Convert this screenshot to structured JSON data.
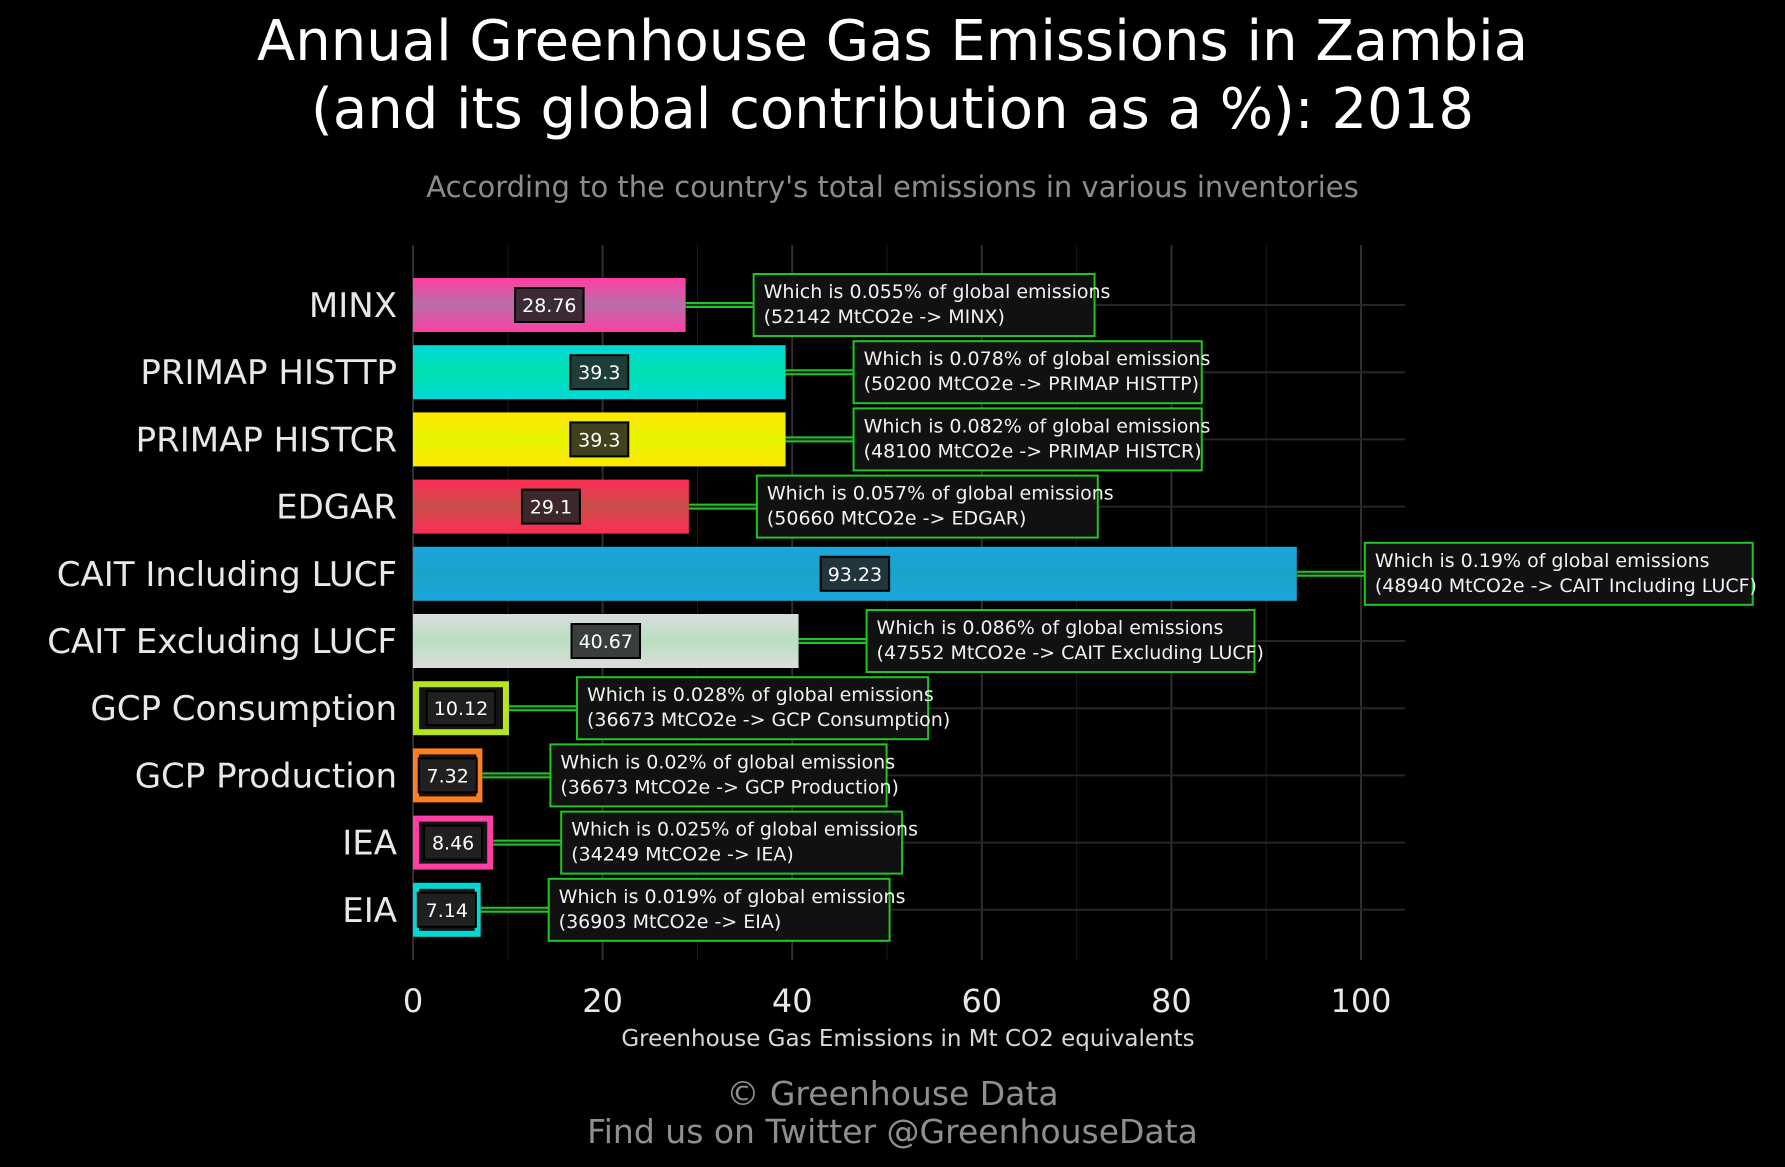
{
  "header": {
    "title_line1": "Annual Greenhouse Gas Emissions in Zambia",
    "title_line2": "(and its global contribution as a %): 2018",
    "subtitle": "According to the country's total emissions in various inventories"
  },
  "footer": {
    "credit": "© Greenhouse Data",
    "twitter": "Find us on Twitter @GreenhouseData"
  },
  "chart_data": {
    "type": "bar",
    "orientation": "horizontal",
    "xlabel": "Greenhouse Gas Emissions in Mt CO2 equivalents",
    "xlim": [
      0,
      105
    ],
    "xticks": [
      0,
      20,
      40,
      60,
      80,
      100
    ],
    "grid": true,
    "categories": [
      "MINX",
      "PRIMAP HISTTP",
      "PRIMAP HISTCR",
      "EDGAR",
      "CAIT Including LUCF",
      "CAIT Excluding LUCF",
      "GCP Consumption",
      "GCP Production",
      "IEA",
      "EIA"
    ],
    "values": [
      28.76,
      39.3,
      39.3,
      29.1,
      93.23,
      40.67,
      10.12,
      7.32,
      8.46,
      7.14
    ],
    "value_labels": [
      "28.76",
      "39.3",
      "39.3",
      "29.1",
      "93.23",
      "40.67",
      "10.12",
      "7.32",
      "8.46",
      "7.14"
    ],
    "annotations": [
      [
        "Which is 0.055% of global emissions",
        "(52142 MtCO2e -> MINX)"
      ],
      [
        "Which is 0.078% of global emissions",
        "(50200 MtCO2e -> PRIMAP HISTTP)"
      ],
      [
        "Which is 0.082% of global emissions",
        "(48100 MtCO2e -> PRIMAP HISTCR)"
      ],
      [
        "Which is 0.057% of global emissions",
        "(50660 MtCO2e -> EDGAR)"
      ],
      [
        "Which is 0.19% of global emissions",
        "(48940 MtCO2e -> CAIT Including LUCF)"
      ],
      [
        "Which is 0.086% of global emissions",
        "(47552 MtCO2e -> CAIT Excluding LUCF)"
      ],
      [
        "Which is 0.028% of global emissions",
        "(36673 MtCO2e -> GCP Consumption)"
      ],
      [
        "Which is 0.02% of global emissions",
        "(36673 MtCO2e -> GCP Production)"
      ],
      [
        "Which is 0.025% of global emissions",
        "(34249 MtCO2e -> IEA)"
      ],
      [
        "Which is 0.019% of global emissions",
        "(36903 MtCO2e -> EIA)"
      ]
    ],
    "colors": [
      "#ff3fa4",
      "#00d9d6",
      "#ffe800",
      "#ff2d55",
      "#1aa6e0",
      "#dcdcdc",
      "#b5e61d",
      "#ff7f1e",
      "#ff3fa4",
      "#00d9d6"
    ],
    "colors_end": [
      "#b86ea8",
      "#00e0b0",
      "#e6f500",
      "#c8504a",
      "#1aa3c8",
      "#b8e0c0",
      "#b5e61d",
      "#ff7f1e",
      "#ff3fa4",
      "#00d9d6"
    ],
    "annotation_border_color": "#21c521",
    "label_box_color": "#222222"
  }
}
